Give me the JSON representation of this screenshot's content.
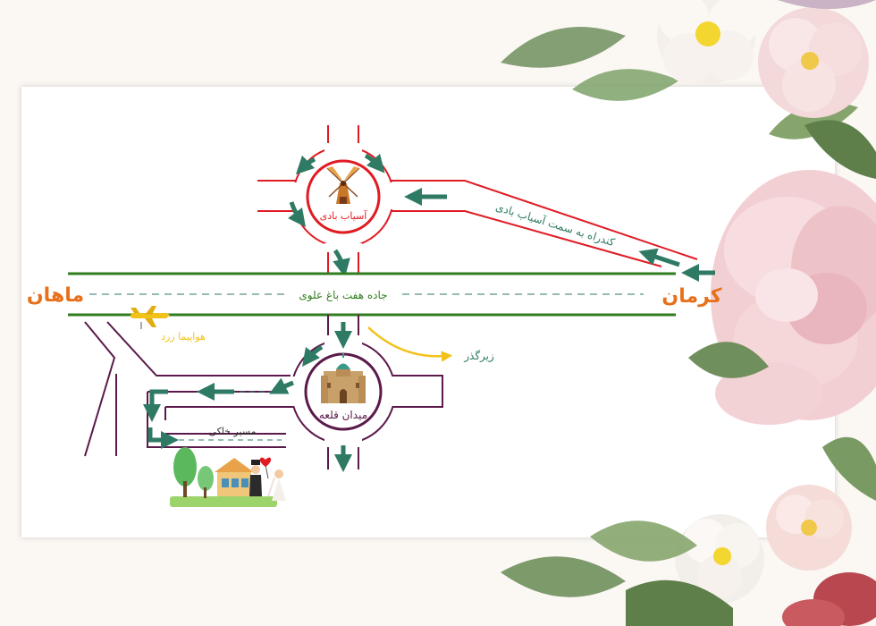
{
  "map": {
    "places": {
      "kerman": "کرمان",
      "mahan": "ماهان",
      "windmill_square": "آسیاب بادی",
      "castle_square": "میدان قلعه"
    },
    "roads": {
      "main_road": "جاده هفت باغ علوی",
      "bypass": "کندراه به سمت آسیاب بادی",
      "dirt_road": "مسیر خاکی",
      "underpass": "زیرگذر"
    },
    "landmarks": {
      "yellow_airplane": "هواپیما زرد"
    }
  },
  "colors": {
    "main_road_border": "#2f7d1f",
    "north_roundabout": "#e01b24",
    "south_roundabout": "#5b1a4b",
    "arrow": "#2e7a64",
    "place_label": "#e8701a",
    "landmark_label": "#f2c21a"
  },
  "icons": [
    "windmill-icon",
    "castle-icon",
    "airplane-icon",
    "house-icon",
    "couple-icon",
    "heart-icon",
    "tree-icon",
    "flower-decoration"
  ]
}
